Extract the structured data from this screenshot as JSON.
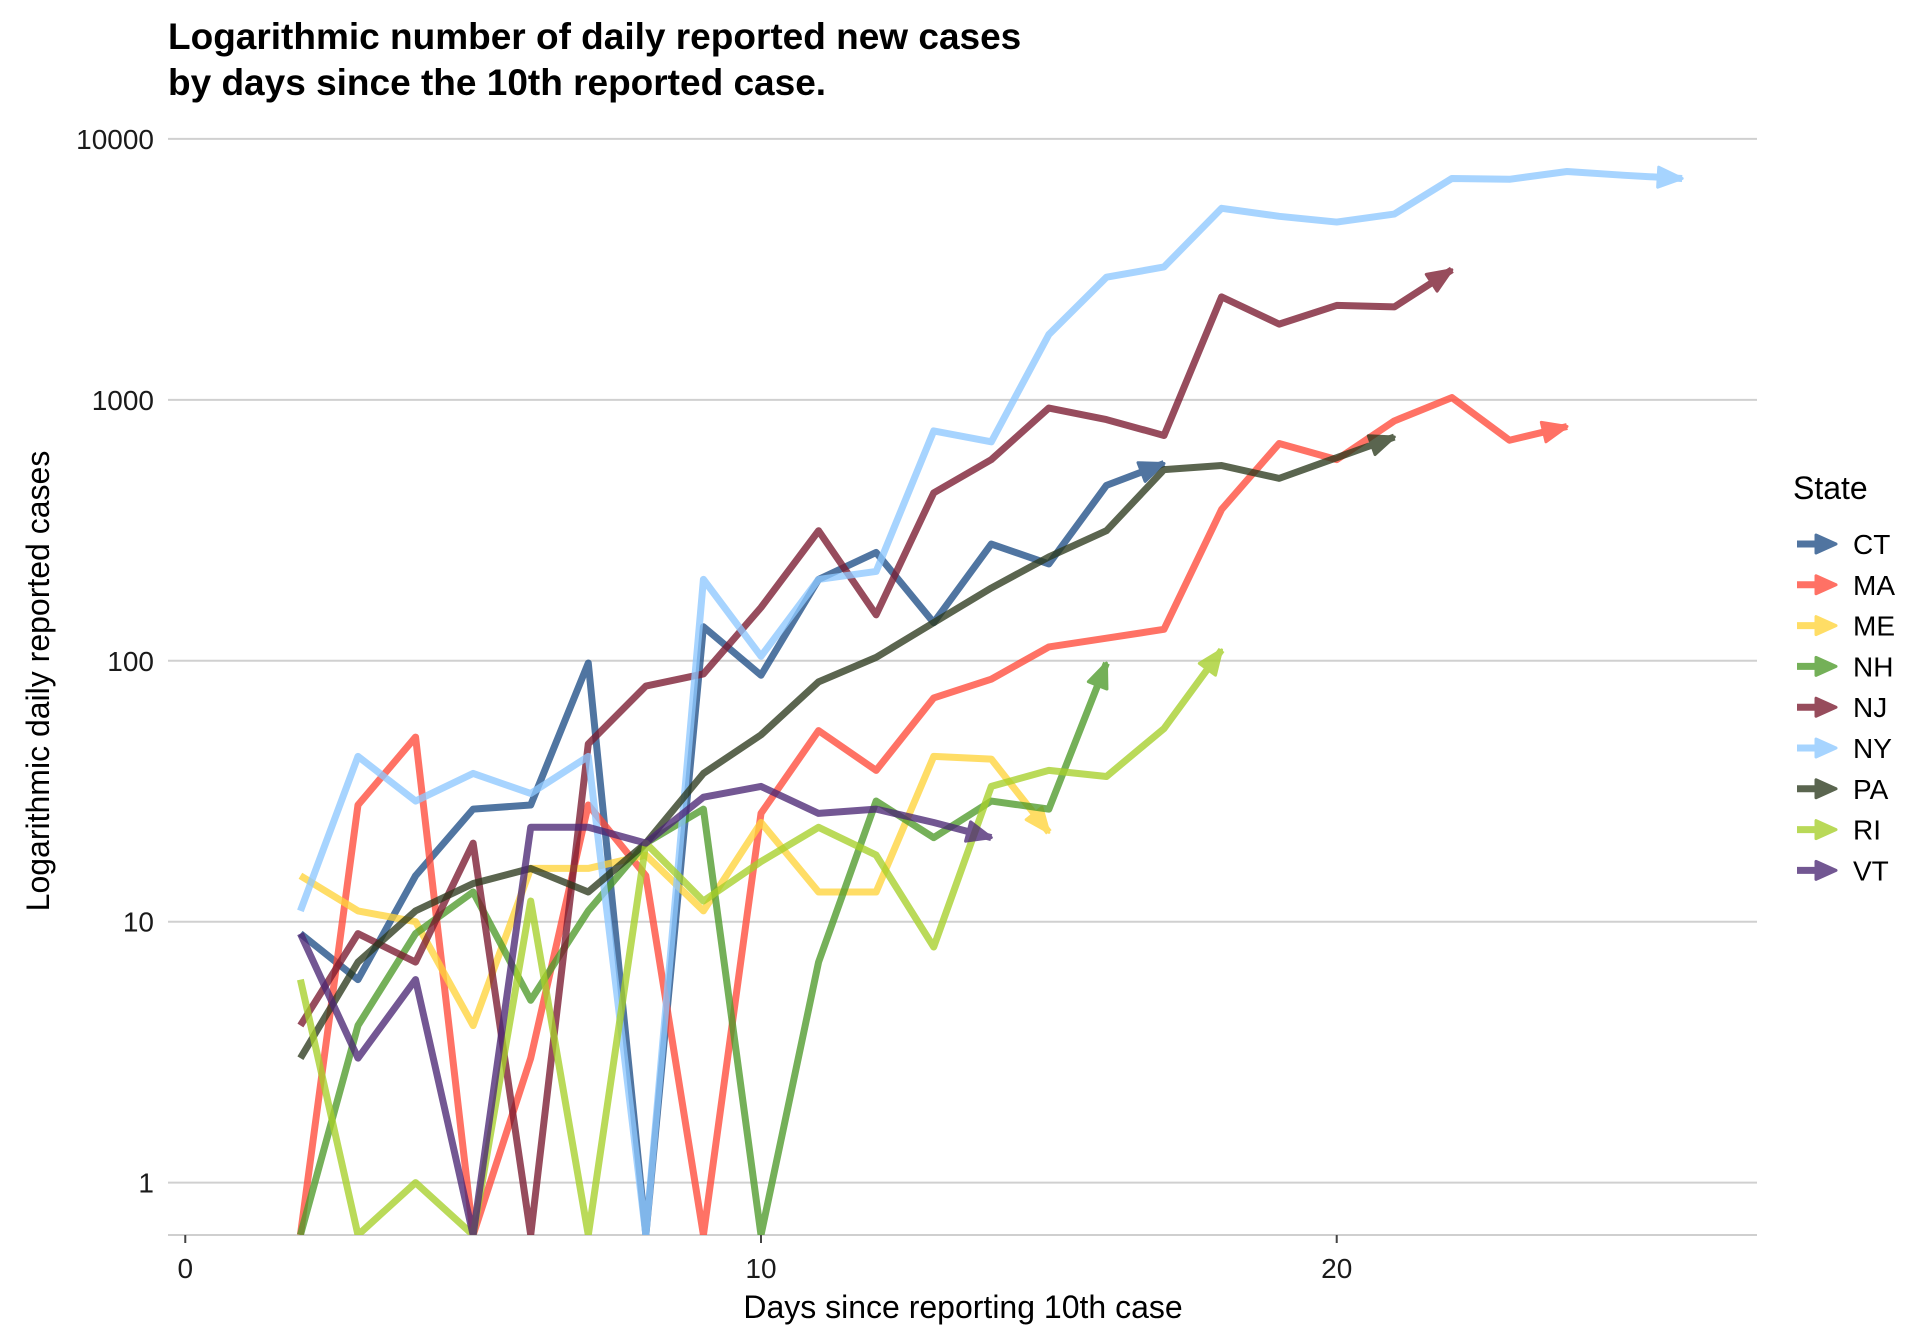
{
  "chart_data": {
    "type": "line",
    "title": [
      "Logarithmic number of daily reported new cases",
      "by days since the 10th reported case."
    ],
    "xlabel": "Days since reporting 10th case",
    "ylabel": "Logarithmic daily reported cases",
    "xlim": [
      -0.3,
      27.3
    ],
    "ylim": [
      0.63,
      10000
    ],
    "y_scale": "log10",
    "x_ticks": [
      0,
      10,
      20
    ],
    "y_ticks": [
      1,
      10,
      100,
      1000,
      10000
    ],
    "y_tick_labels": [
      "1",
      "10",
      "100",
      "1000",
      "10000"
    ],
    "grid": "horizontal",
    "legend": {
      "title": "State",
      "position": "right"
    },
    "series": [
      {
        "name": "CT",
        "color": "#1F4E86",
        "x": [
          2,
          3,
          4,
          5,
          6,
          7,
          8,
          9,
          10,
          11,
          12,
          13,
          14,
          15,
          16,
          17
        ],
        "y": [
          9,
          6,
          15,
          27,
          28,
          98,
          0.63,
          135,
          88,
          205,
          260,
          140,
          280,
          235,
          470,
          570
        ]
      },
      {
        "name": "MA",
        "color": "#FF4A3A",
        "x": [
          2,
          3,
          4,
          5,
          6,
          7,
          8,
          9,
          10,
          11,
          12,
          13,
          14,
          15,
          16,
          17,
          18,
          19,
          20,
          21,
          22,
          23,
          24
        ],
        "y": [
          0.63,
          28,
          51,
          0.63,
          3,
          28,
          15,
          0.63,
          26,
          54,
          38,
          72,
          85,
          113,
          122,
          132,
          380,
          680,
          590,
          830,
          1020,
          700,
          790
        ]
      },
      {
        "name": "ME",
        "color": "#FFD43B",
        "x": [
          2,
          3,
          4,
          5,
          6,
          7,
          8,
          9,
          10,
          11,
          12,
          13,
          14,
          15
        ],
        "y": [
          15,
          11,
          10,
          4,
          16,
          16,
          18,
          11,
          24,
          13,
          13,
          43,
          42,
          22
        ]
      },
      {
        "name": "NH",
        "color": "#4E9A2A",
        "x": [
          2,
          3,
          4,
          5,
          6,
          7,
          8,
          9,
          10,
          11,
          12,
          13,
          14,
          15,
          16
        ],
        "y": [
          0.63,
          4,
          9,
          13,
          5,
          11,
          20,
          27,
          0.63,
          7,
          29,
          21,
          29,
          27,
          98
        ]
      },
      {
        "name": "NJ",
        "color": "#7A1A2F",
        "x": [
          2,
          3,
          4,
          5,
          6,
          7,
          8,
          9,
          10,
          11,
          12,
          13,
          14,
          15,
          16,
          17,
          18,
          19,
          20,
          21,
          22
        ],
        "y": [
          4,
          9,
          7,
          20,
          0.63,
          48,
          80,
          89,
          160,
          315,
          150,
          440,
          590,
          930,
          840,
          730,
          2480,
          1950,
          2300,
          2270,
          3150
        ]
      },
      {
        "name": "NY",
        "color": "#8EC8FF",
        "x": [
          2,
          3,
          4,
          5,
          6,
          7,
          8,
          9,
          10,
          11,
          12,
          13,
          14,
          15,
          16,
          17,
          18,
          19,
          20,
          21,
          22,
          23,
          24,
          25,
          26
        ],
        "y": [
          11,
          43,
          29,
          37,
          31,
          43,
          0.63,
          205,
          104,
          205,
          220,
          760,
          690,
          1780,
          2950,
          3230,
          5420,
          5050,
          4800,
          5150,
          7050,
          7000,
          7500,
          7250,
          7050
        ]
      },
      {
        "name": "PA",
        "color": "#2D3A1E",
        "x": [
          2,
          3,
          4,
          5,
          6,
          7,
          8,
          9,
          10,
          11,
          12,
          13,
          14,
          15,
          16,
          17,
          18,
          19,
          20,
          21
        ],
        "y": [
          3,
          7,
          11,
          14,
          16,
          13,
          20,
          37,
          52,
          83,
          103,
          140,
          190,
          250,
          315,
          540,
          560,
          500,
          600,
          720
        ]
      },
      {
        "name": "RI",
        "color": "#A6CF2A",
        "x": [
          2,
          3,
          4,
          5,
          6,
          7,
          8,
          9,
          10,
          11,
          12,
          13,
          14,
          15,
          16,
          17,
          18
        ],
        "y": [
          6,
          0.63,
          1,
          0.63,
          12,
          0.63,
          20,
          12,
          17,
          23,
          18,
          8,
          33,
          38,
          36,
          55,
          110
        ]
      },
      {
        "name": "VT",
        "color": "#4B2874",
        "x": [
          2,
          3,
          4,
          5,
          6,
          7,
          8,
          9,
          10,
          11,
          12,
          13,
          14
        ],
        "y": [
          9,
          3,
          6,
          0.63,
          23,
          23,
          20,
          30,
          33,
          26,
          27,
          24,
          21
        ]
      }
    ]
  }
}
